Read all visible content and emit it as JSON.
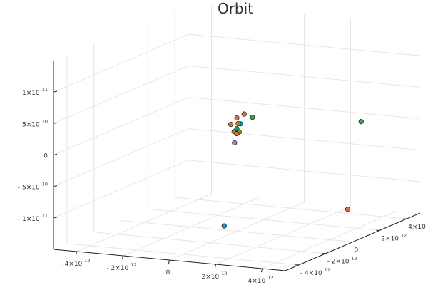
{
  "chart_data": {
    "type": "scatter",
    "projection": "3d",
    "title": "Orbit",
    "grid": true,
    "legend": "none",
    "x_axis": {
      "ticks": [
        {
          "text": "- 4×10",
          "exp": "12"
        },
        {
          "text": "- 2×10",
          "exp": "12"
        },
        {
          "text": "0",
          "exp": ""
        },
        {
          "text": "2×10",
          "exp": "12"
        },
        {
          "text": "4×10",
          "exp": "12"
        }
      ]
    },
    "y_axis": {
      "ticks": [
        {
          "text": "- 4×10",
          "exp": "12"
        },
        {
          "text": "- 2×10",
          "exp": "12"
        },
        {
          "text": "0",
          "exp": ""
        },
        {
          "text": "2×10",
          "exp": "12"
        },
        {
          "text": "4×10",
          "exp": "12"
        }
      ]
    },
    "z_axis": {
      "ticks": [
        {
          "text": "1×10",
          "exp": "11"
        },
        {
          "text": "5×10",
          "exp": "10"
        },
        {
          "text": "0",
          "exp": ""
        },
        {
          "text": "- 5×10",
          "exp": "10"
        },
        {
          "text": "- 1×10",
          "exp": "11"
        }
      ]
    },
    "points": [
      {
        "x": 1200000000000.0,
        "y": -3000000000000.0,
        "z": -110000000000.0,
        "color": "#009AFA"
      },
      {
        "x": 4200000000000.0,
        "y": 1000000000000.0,
        "z": -110000000000.0,
        "color": "#E26F46"
      },
      {
        "x": 4200000000000.0,
        "y": 2000000000000.0,
        "z": 20000000000.0,
        "color": "#3DA44D"
      },
      {
        "x": 200000000000.0,
        "y": 200000000000.0,
        "z": 35000000000.0,
        "color": "#C68225"
      },
      {
        "x": 500000000000.0,
        "y": 300000000000.0,
        "z": 30000000000.0,
        "color": "#3DA44D"
      },
      {
        "x": 0.0,
        "y": 0.0,
        "z": 30000000000.0,
        "color": "#E26F46"
      },
      {
        "x": -200000000000.0,
        "y": -100000000000.0,
        "z": 20000000000.0,
        "color": "#C68225"
      },
      {
        "x": 100000000000.0,
        "y": 100000000000.0,
        "z": 20000000000.0,
        "color": "#00A9AD"
      },
      {
        "x": 0.0,
        "y": -200000000000.0,
        "z": 10000000000.0,
        "color": "#AC8D18"
      },
      {
        "x": 100000000000.0,
        "y": 0.0,
        "z": 8000000000.0,
        "color": "#AC8D18"
      },
      {
        "x": 0.0,
        "y": 0.0,
        "z": 5000000000.0,
        "color": "#E26F46"
      },
      {
        "x": 0.0,
        "y": 0.0,
        "z": 13000000000.0,
        "color": "#00A9AD"
      },
      {
        "x": 0.0,
        "y": 100000000000.0,
        "z": 20000000000.0,
        "color": "#C68225"
      },
      {
        "x": -100000000000.0,
        "y": 0.0,
        "z": -10000000000.0,
        "color": "#9B7FE8"
      }
    ]
  }
}
